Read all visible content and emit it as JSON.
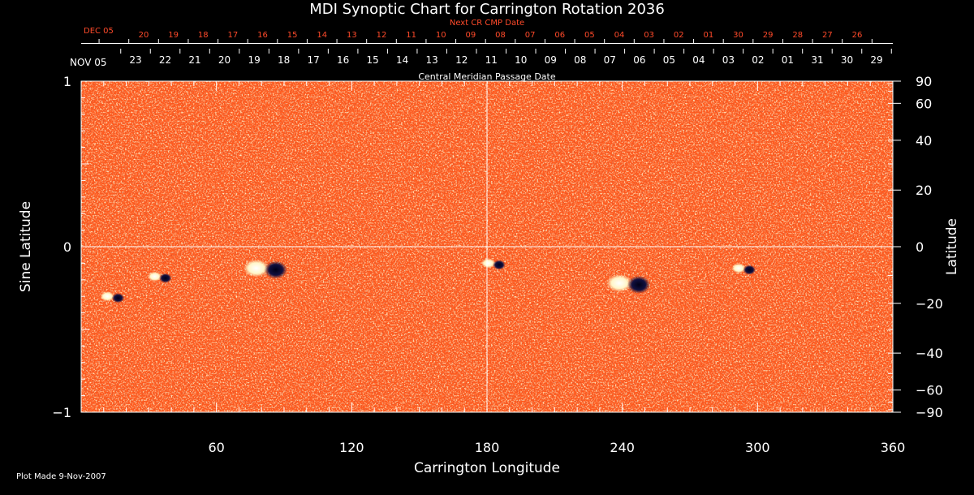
{
  "chart_data": {
    "type": "heatmap",
    "title": "MDI Synoptic Chart for Carrington Rotation 2036",
    "xlabel": "Carrington Longitude",
    "ylabel_left": "Sine Latitude",
    "ylabel_right": "Latitude",
    "xlim": [
      0,
      360
    ],
    "ylim": [
      -1,
      1
    ],
    "x_ticks": [
      "60",
      "120",
      "180",
      "240",
      "300",
      "360"
    ],
    "y_ticks_left": [
      "1",
      "0",
      "−1"
    ],
    "y_ticks_right": [
      "90",
      "60",
      "40",
      "20",
      "0",
      "−20",
      "−40",
      "−60",
      "−90"
    ],
    "top_axis_label": "Central Meridian Passage Date",
    "top_axis_start": "NOV 05",
    "top_axis_dates": [
      "23",
      "22",
      "21",
      "20",
      "19",
      "18",
      "17",
      "16",
      "15",
      "14",
      "13",
      "12",
      "11",
      "10",
      "09",
      "08",
      "07",
      "06",
      "05",
      "04",
      "03",
      "02",
      "01",
      "31",
      "30",
      "29"
    ],
    "next_cr_label": "Next CR CMP Date",
    "next_cr_start": "DEC 05",
    "next_cr_dates": [
      "20",
      "19",
      "18",
      "17",
      "16",
      "15",
      "14",
      "13",
      "12",
      "11",
      "10",
      "09",
      "08",
      "07",
      "06",
      "05",
      "04",
      "03",
      "02",
      "01",
      "30",
      "29",
      "28",
      "27",
      "26"
    ],
    "grid_lines": {
      "longitude": 180,
      "sine_latitude": 0
    },
    "colors": {
      "background": "#ff5a1e",
      "positive": "#ffffff",
      "negative": "#0a0a3a"
    },
    "active_regions": [
      {
        "lon": 82,
        "sinlat": -0.13,
        "polarity": "bipolar"
      },
      {
        "lon": 14,
        "sinlat": -0.3,
        "polarity": "bipolar"
      },
      {
        "lon": 35,
        "sinlat": -0.18,
        "polarity": "bipolar"
      },
      {
        "lon": 183,
        "sinlat": -0.1,
        "polarity": "bipolar"
      },
      {
        "lon": 243,
        "sinlat": -0.22,
        "polarity": "bipolar"
      },
      {
        "lon": 294,
        "sinlat": -0.13,
        "polarity": "bipolar"
      }
    ]
  },
  "footer": "Plot Made  9-Nov-2007"
}
